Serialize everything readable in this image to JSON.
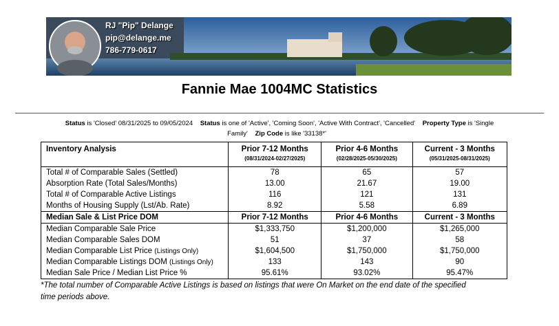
{
  "agent": {
    "name": "RJ \"Pip\" Delange",
    "email": "pip@delange.me",
    "phone": "786-779-0617"
  },
  "title": "Fannie Mae 1004MC Statistics",
  "criteria": [
    {
      "field": "Status",
      "condition": "is 'Closed' 08/31/2025 to 09/05/2024"
    },
    {
      "field": "Status",
      "condition": "is one of 'Active', 'Coming Soon', 'Active With Contract', 'Cancelled'"
    },
    {
      "field": "Property Type",
      "condition": "is 'Single Family'"
    },
    {
      "field": "Zip Code",
      "condition": "is like '33138*'"
    }
  ],
  "table": {
    "sections": [
      {
        "header": [
          {
            "title": "Inventory Analysis"
          },
          {
            "title": "Prior 7-12 Months",
            "dates": "(08/31/2024-02/27/2025)"
          },
          {
            "title": "Prior 4-6 Months",
            "dates": "(02/28/2025-05/30/2025)"
          },
          {
            "title": "Current - 3 Months",
            "dates": "(05/31/2025-08/31/2025)"
          }
        ],
        "rows": [
          {
            "label": "Total # of Comparable Sales (Settled)",
            "cells": [
              "78",
              "65",
              "57"
            ]
          },
          {
            "label": "Absorption Rate (Total Sales/Months)",
            "cells": [
              "13.00",
              "21.67",
              "19.00"
            ]
          },
          {
            "label": "Total # of Comparable Active Listings",
            "cells": [
              "116",
              "121",
              "131"
            ]
          },
          {
            "label": "Months of Housing Supply (Lst/Ab. Rate)",
            "cells": [
              "8.92",
              "5.58",
              "6.89"
            ]
          }
        ]
      },
      {
        "header": [
          {
            "title": "Median Sale & List Price DOM"
          },
          {
            "title": "Prior 7-12 Months"
          },
          {
            "title": "Prior 4-6 Months"
          },
          {
            "title": "Current - 3 Months"
          }
        ],
        "rows": [
          {
            "label": "Median Comparable Sale Price",
            "cells": [
              "$1,333,750",
              "$1,200,000",
              "$1,265,000"
            ]
          },
          {
            "label": "Median Comparable Sales DOM",
            "cells": [
              "51",
              "37",
              "58"
            ]
          },
          {
            "label": "Median Comparable List Price",
            "note": "(Listings Only)",
            "cells": [
              "$1,604,500",
              "$1,750,000",
              "$1,750,000"
            ]
          },
          {
            "label": "Median Comparable Listings DOM",
            "note": "(Listings Only)",
            "cells": [
              "133",
              "143",
              "90"
            ]
          },
          {
            "label": "Median Sale Price / Median List Price %",
            "cells": [
              "95.61%",
              "93.02%",
              "95.47%"
            ]
          }
        ]
      }
    ]
  },
  "footnote": "*The total number of Comparable Active Listings is based on listings that were On Market on the end date of the specified time periods above."
}
